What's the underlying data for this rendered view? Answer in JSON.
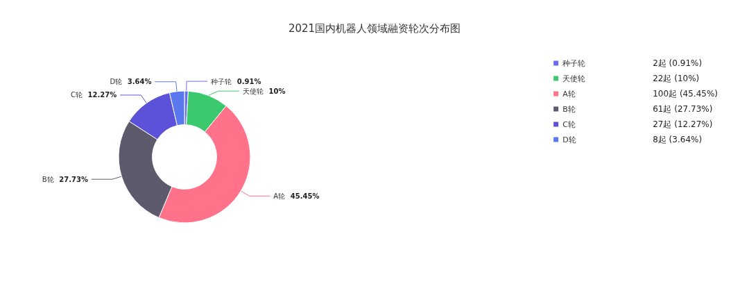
{
  "chart_data": {
    "type": "donut",
    "title": "2021国内机器人领域融资轮次分布图",
    "categories": [
      "种子轮",
      "天使轮",
      "A轮",
      "B轮",
      "C轮",
      "D轮"
    ],
    "values": [
      0.91,
      10,
      45.45,
      27.73,
      12.27,
      3.64
    ],
    "value_labels": [
      "0.91%",
      "10%",
      "45.45%",
      "27.73%",
      "12.27%",
      "3.64%"
    ],
    "annotations": [
      "2起 (0.91%)",
      "22起 (10%)",
      "100起 (45.45%)",
      "61起 (27.73%)",
      "27起 (12.27%)",
      "8起 (3.64%)"
    ],
    "colors": [
      "#6c6cf2",
      "#3cc96e",
      "#ff728a",
      "#5d5a6d",
      "#5b52d9",
      "#5a78f0"
    ],
    "legend": "top right"
  }
}
